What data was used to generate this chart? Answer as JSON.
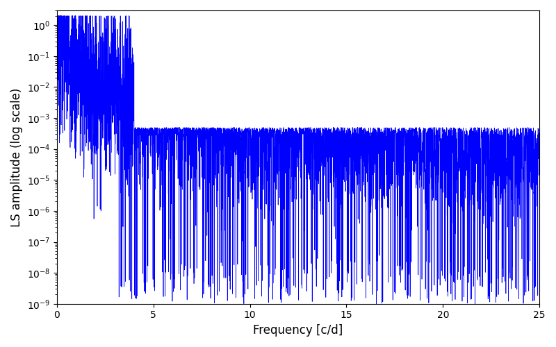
{
  "line_color": "#0000ff",
  "xlabel": "Frequency [c/d]",
  "ylabel": "LS amplitude (log scale)",
  "xlim": [
    0,
    25
  ],
  "ylim": [
    1e-09,
    3.0
  ],
  "figsize": [
    8.0,
    5.0
  ],
  "dpi": 100,
  "seed": 7,
  "n_points": 5000,
  "freq_max": 25.0,
  "line_width": 0.5,
  "xticks": [
    0,
    5,
    10,
    15,
    20,
    25
  ]
}
